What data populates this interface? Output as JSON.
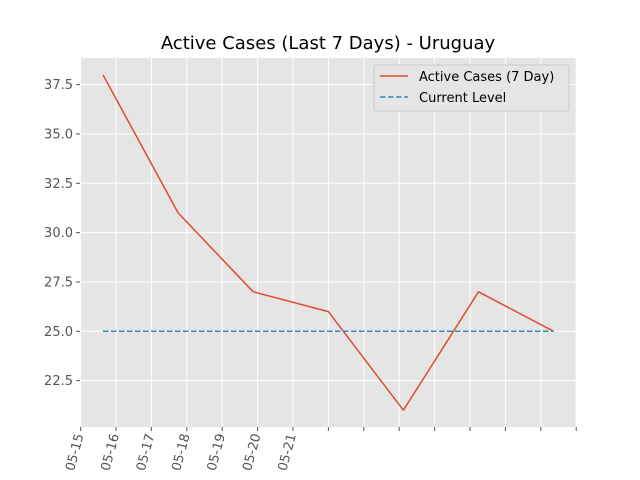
{
  "chart_data": {
    "type": "line",
    "title": "Active Cases (Last 7 Days) - Uruguay",
    "xlabel": "",
    "ylabel": "",
    "x_tick_labels": [
      "05-15",
      "05-16",
      "05-17",
      "05-18",
      "05-19",
      "05-20",
      "05-21"
    ],
    "y_ticks": [
      22.5,
      25.0,
      27.5,
      30.0,
      32.5,
      35.0,
      37.5
    ],
    "y_tick_labels": [
      "22.5",
      "25.0",
      "27.5",
      "30.0",
      "32.5",
      "35.0",
      "37.5"
    ],
    "ylim": [
      20.15,
      38.85
    ],
    "grid": true,
    "legend_position": "top-right",
    "series": [
      {
        "name": "Active Cases (7 Day)",
        "style": "solid",
        "color": "#E24A33",
        "x": [
          "05-15",
          "05-16",
          "05-17",
          "05-18",
          "05-19",
          "05-20",
          "05-21"
        ],
        "values": [
          38,
          31,
          27,
          26,
          21,
          27,
          25
        ]
      },
      {
        "name": "Current Level",
        "style": "dashed",
        "color": "#348ABD",
        "x": [
          "05-15",
          "05-21"
        ],
        "values": [
          25,
          25
        ]
      }
    ]
  },
  "colors": {
    "plot_background": "#E5E5E5",
    "grid": "#FFFFFF",
    "tick_text": "#555555"
  }
}
